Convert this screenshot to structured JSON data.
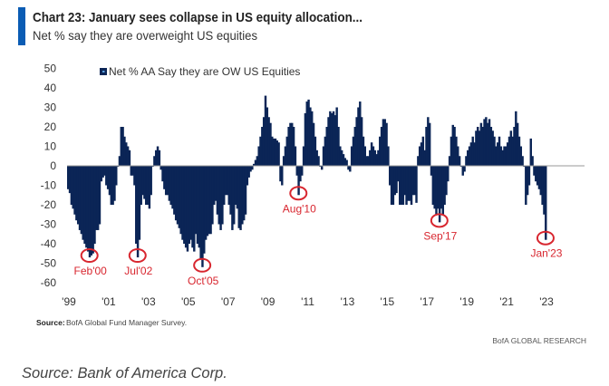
{
  "header": {
    "title": "Chart 23: January sees collapse in US equity allocation...",
    "subtitle": "Net % say they are overweight US equities"
  },
  "footer": {
    "source_label": "Source:",
    "source_text": "BofA Global Fund Manager Survey.",
    "brand": "BofA GLOBAL RESEARCH",
    "caption": "Source: Bank of America Corp."
  },
  "colors": {
    "bar": "#0b2556",
    "annotation": "#d8262f",
    "accent": "#0a5cb4",
    "zero_line": "#9a9a9a"
  },
  "chart_data": {
    "type": "bar",
    "frequency": "monthly",
    "legend": {
      "label": "Net % AA Say they are OW US Equities",
      "placement": "top-left"
    },
    "ylim": [
      -60,
      50
    ],
    "yticks": [
      "50",
      "40",
      "30",
      "20",
      "10",
      "0",
      "-10",
      "-20",
      "-30",
      "-40",
      "-50",
      "-60"
    ],
    "xticks": [
      "'99",
      "'01",
      "'03",
      "'05",
      "'07",
      "'09",
      "'11",
      "'13",
      "'15",
      "'17",
      "'19",
      "'21",
      "'23"
    ],
    "grid": false,
    "series": [
      {
        "name": "Net % AA Say they are OW US Equities",
        "values_by_year": {
          "1999": [
            -12,
            -14,
            -20,
            -22,
            -25,
            -28,
            -30,
            -33,
            -35,
            -38,
            -40,
            -42
          ],
          "2000": [
            -44,
            -47,
            -46,
            -45,
            -40,
            -33,
            -33,
            -30,
            -8,
            -6,
            -5,
            -10
          ],
          "2001": [
            -12,
            -15,
            -20,
            -20,
            -18,
            -10,
            0,
            5,
            20,
            20,
            15,
            12
          ],
          "2002": [
            10,
            8,
            -5,
            -5,
            -10,
            -40,
            -47,
            -38,
            -20,
            -15,
            -17,
            -20
          ],
          "2003": [
            -20,
            -22,
            -15,
            0,
            5,
            8,
            10,
            8,
            -2,
            -8,
            -12,
            -15
          ],
          "2004": [
            -15,
            -18,
            -20,
            -22,
            -25,
            -28,
            -30,
            -32,
            -35,
            -38,
            -40,
            -42
          ],
          "2005": [
            -44,
            -40,
            -38,
            -42,
            -44,
            -35,
            -40,
            -42,
            -48,
            -52,
            -45,
            -38
          ],
          "2006": [
            -36,
            -35,
            -35,
            -30,
            -20,
            -18,
            -25,
            -30,
            -33,
            -30,
            -20,
            -15
          ],
          "2007": [
            -15,
            -20,
            -25,
            -33,
            -30,
            -20,
            -22,
            -32,
            -33,
            -30,
            -28,
            -25
          ],
          "2008": [
            -10,
            -6,
            -3,
            -2,
            1,
            3,
            5,
            10,
            15,
            20,
            25,
            36
          ],
          "2009": [
            30,
            25,
            22,
            15,
            14,
            14,
            13,
            12,
            -8,
            -10,
            5,
            10
          ],
          "2010": [
            15,
            20,
            22,
            22,
            20,
            10,
            -5,
            -15,
            -8,
            -5,
            10,
            27
          ],
          "2011": [
            33,
            34,
            30,
            28,
            22,
            15,
            8,
            5,
            0,
            -2,
            10,
            15
          ],
          "2012": [
            20,
            25,
            28,
            27,
            28,
            26,
            30,
            20,
            10,
            8,
            6,
            4
          ],
          "2013": [
            3,
            -2,
            -3,
            10,
            15,
            20,
            25,
            30,
            33,
            25,
            15,
            10
          ],
          "2014": [
            5,
            5,
            8,
            12,
            10,
            8,
            6,
            8,
            15,
            20,
            24,
            24
          ],
          "2015": [
            22,
            10,
            -10,
            -20,
            -20,
            -15,
            -14,
            -8,
            -20,
            -20,
            -20,
            -15
          ],
          "2016": [
            -20,
            -18,
            -18,
            -20,
            -15,
            -15,
            -19,
            5,
            10,
            12,
            15,
            8
          ],
          "2017": [
            20,
            25,
            22,
            -5,
            -20,
            -22,
            -25,
            -22,
            -29,
            -22,
            -25,
            -20
          ],
          "2018": [
            -15,
            -8,
            5,
            15,
            21,
            20,
            15,
            10,
            5,
            0,
            -5,
            -3
          ],
          "2019": [
            5,
            8,
            10,
            12,
            15,
            12,
            18,
            20,
            18,
            22,
            20,
            24
          ],
          "2020": [
            25,
            22,
            24,
            20,
            18,
            15,
            10,
            12,
            15,
            10,
            8,
            10
          ],
          "2021": [
            10,
            12,
            15,
            18,
            15,
            20,
            28,
            22,
            15,
            10,
            5,
            0
          ],
          "2022": [
            -20,
            -15,
            -10,
            14,
            5,
            -5,
            -8,
            -10,
            -12,
            -15,
            -20,
            -25
          ],
          "2023": [
            -38
          ]
        }
      }
    ],
    "annotations": [
      {
        "label": "Feb'00",
        "year": "2000",
        "month": 2
      },
      {
        "label": "Jul'02",
        "year": "2002",
        "month": 7
      },
      {
        "label": "Oct'05",
        "year": "2005",
        "month": 10
      },
      {
        "label": "Aug'10",
        "year": "2010",
        "month": 8
      },
      {
        "label": "Sep'17",
        "year": "2017",
        "month": 9
      },
      {
        "label": "Jan'23",
        "year": "2023",
        "month": 1
      }
    ]
  }
}
